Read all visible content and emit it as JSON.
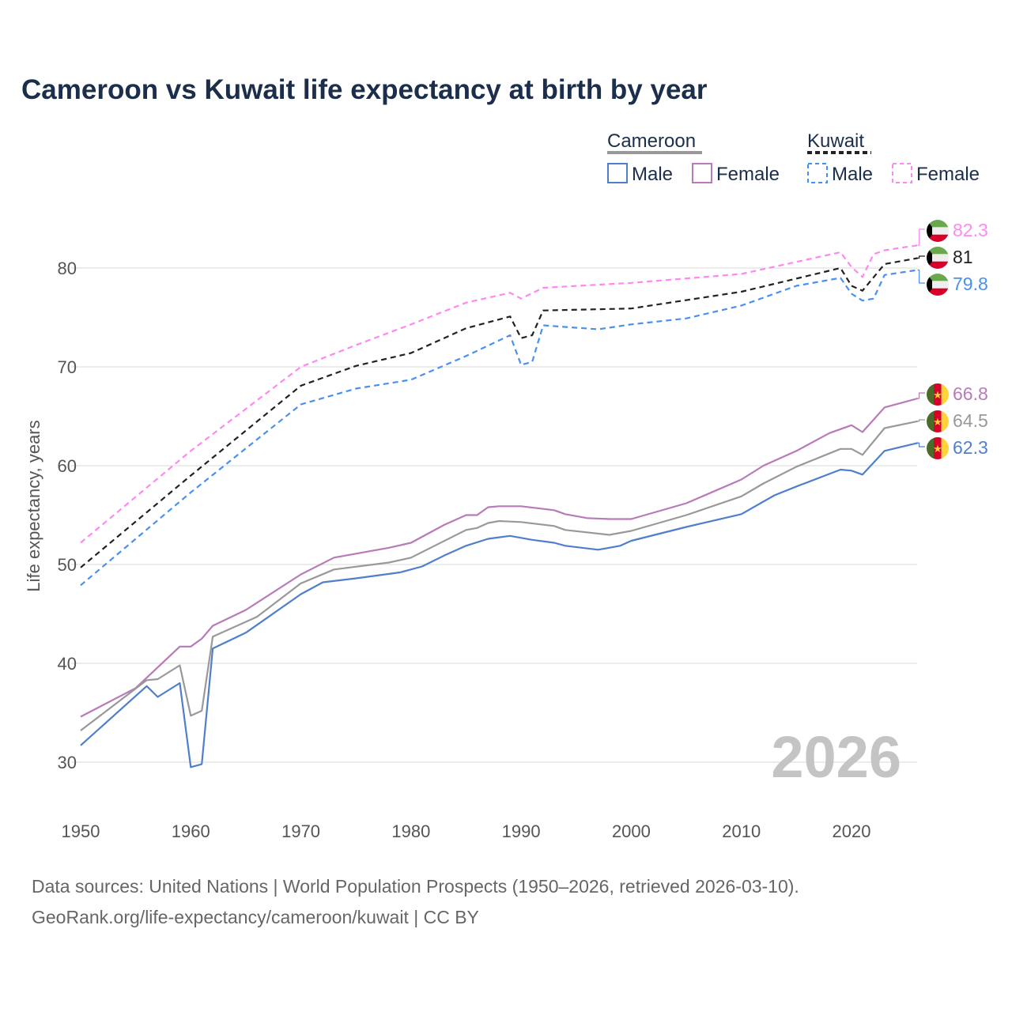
{
  "title": "Cameroon vs Kuwait life expectancy at birth by year",
  "year_watermark": "2026",
  "source_line1": "Data sources: United Nations | World Population Prospects (1950–2026, retrieved 2026-03-10).",
  "source_line2": "GeoRank.org/life-expectancy/cameroon/kuwait | CC BY",
  "legend": {
    "groups": [
      {
        "name": "Cameroon",
        "color": "#999999",
        "dashed": false
      },
      {
        "name": "Kuwait",
        "color": "#222222",
        "dashed": true
      }
    ],
    "items": [
      {
        "label": "Male",
        "color": "#4f7fcc",
        "dashed": false
      },
      {
        "label": "Female",
        "color": "#b87ab8",
        "dashed": false
      },
      {
        "label": "Male",
        "color": "#4a90f0",
        "dashed": true
      },
      {
        "label": "Female",
        "color": "#ff88f0",
        "dashed": true
      }
    ]
  },
  "chart_data": {
    "type": "line",
    "title": "Cameroon vs Kuwait life expectancy at birth by year",
    "xlabel": "",
    "ylabel": "Life expectancy, years",
    "xlim": [
      1950,
      2026
    ],
    "ylim": [
      25,
      85
    ],
    "xticks": [
      1950,
      1960,
      1970,
      1980,
      1990,
      2000,
      2010,
      2020
    ],
    "yticks": [
      30,
      40,
      50,
      60,
      70,
      80
    ],
    "grid": true,
    "legend_position": "top-right",
    "series": [
      {
        "name": "Kuwait Female",
        "country": "kuwait",
        "color": "#ff88f0",
        "dashed": true,
        "end_label": "82.3",
        "x": [
          1950,
          1960,
          1970,
          1975,
          1980,
          1985,
          1989,
          1990,
          1992,
          2000,
          2010,
          2019,
          2020,
          2021,
          2022,
          2023,
          2026
        ],
        "y": [
          52.2,
          61.5,
          70.0,
          72.2,
          74.3,
          76.5,
          77.5,
          76.9,
          78.0,
          78.5,
          79.4,
          81.6,
          80.1,
          79.1,
          81.4,
          81.8,
          82.3
        ]
      },
      {
        "name": "Kuwait",
        "country": "kuwait",
        "color": "#222222",
        "dashed": true,
        "end_label": "81",
        "x": [
          1950,
          1960,
          1970,
          1975,
          1980,
          1985,
          1989,
          1990,
          1991,
          1992,
          2000,
          2010,
          2019,
          2020,
          2021,
          2023,
          2026
        ],
        "y": [
          49.7,
          59.0,
          68.1,
          70.1,
          71.4,
          73.9,
          75.1,
          72.9,
          73.2,
          75.7,
          75.9,
          77.6,
          80.0,
          78.2,
          77.7,
          80.4,
          81.0
        ]
      },
      {
        "name": "Kuwait Male",
        "country": "kuwait",
        "color": "#4a90f0",
        "dashed": true,
        "end_label": "79.8",
        "x": [
          1950,
          1960,
          1970,
          1975,
          1980,
          1985,
          1989,
          1990,
          1991,
          1992,
          1997,
          2000,
          2005,
          2010,
          2015,
          2019,
          2020,
          2021,
          2022,
          2023,
          2026
        ],
        "y": [
          47.9,
          57.3,
          66.2,
          67.8,
          68.7,
          71.1,
          73.2,
          70.2,
          70.5,
          74.2,
          73.8,
          74.3,
          74.9,
          76.2,
          78.2,
          79.0,
          77.4,
          76.7,
          76.9,
          79.3,
          79.8
        ]
      },
      {
        "name": "Cameroon Female",
        "country": "cameroon",
        "color": "#b87ab8",
        "dashed": false,
        "end_label": "66.8",
        "x": [
          1950,
          1955,
          1959,
          1960,
          1961,
          1962,
          1965,
          1970,
          1973,
          1978,
          1980,
          1983,
          1985,
          1986,
          1987,
          1988,
          1990,
          1993,
          1994,
          1996,
          1998,
          2000,
          2005,
          2010,
          2012,
          2015,
          2018,
          2020,
          2021,
          2023,
          2026
        ],
        "y": [
          34.6,
          37.5,
          41.7,
          41.7,
          42.5,
          43.8,
          45.4,
          49.0,
          50.7,
          51.7,
          52.2,
          54.0,
          55.0,
          55.0,
          55.8,
          55.9,
          55.9,
          55.5,
          55.1,
          54.7,
          54.6,
          54.6,
          56.2,
          58.6,
          60.0,
          61.5,
          63.3,
          64.1,
          63.4,
          65.9,
          66.8
        ]
      },
      {
        "name": "Cameroon",
        "country": "cameroon",
        "color": "#999999",
        "dashed": false,
        "end_label": "64.5",
        "x": [
          1950,
          1956,
          1957,
          1959,
          1960,
          1961,
          1962,
          1966,
          1970,
          1973,
          1978,
          1980,
          1985,
          1986,
          1987,
          1988,
          1990,
          1993,
          1994,
          1998,
          2000,
          2005,
          2010,
          2012,
          2015,
          2019,
          2020,
          2021,
          2023,
          2026
        ],
        "y": [
          33.2,
          38.3,
          38.4,
          39.8,
          34.7,
          35.2,
          42.7,
          44.7,
          48.1,
          49.5,
          50.2,
          50.7,
          53.5,
          53.7,
          54.2,
          54.4,
          54.3,
          53.9,
          53.5,
          53.0,
          53.4,
          55.0,
          56.9,
          58.2,
          59.9,
          61.7,
          61.7,
          61.1,
          63.8,
          64.5
        ]
      },
      {
        "name": "Cameroon Male",
        "country": "cameroon",
        "color": "#4f7fcc",
        "dashed": false,
        "end_label": "62.3",
        "x": [
          1950,
          1955,
          1956,
          1957,
          1959,
          1960,
          1961,
          1962,
          1965,
          1970,
          1972,
          1975,
          1979,
          1981,
          1983,
          1985,
          1987,
          1989,
          1991,
          1993,
          1994,
          1997,
          1999,
          2000,
          2005,
          2010,
          2013,
          2015,
          2019,
          2020,
          2021,
          2023,
          2026
        ],
        "y": [
          31.7,
          36.7,
          37.7,
          36.6,
          38.0,
          29.5,
          29.8,
          41.5,
          43.1,
          47.0,
          48.2,
          48.6,
          49.2,
          49.8,
          50.9,
          51.9,
          52.6,
          52.9,
          52.5,
          52.2,
          51.9,
          51.5,
          51.9,
          52.4,
          53.8,
          55.1,
          57.0,
          57.9,
          59.6,
          59.5,
          59.1,
          61.5,
          62.3
        ]
      }
    ]
  }
}
